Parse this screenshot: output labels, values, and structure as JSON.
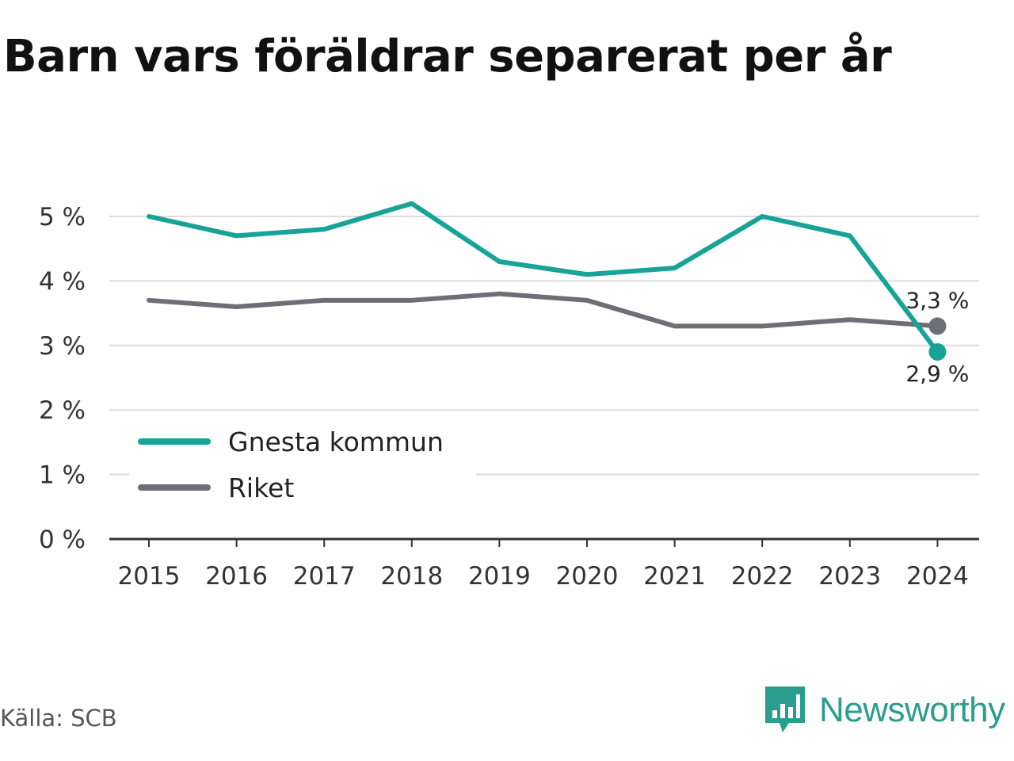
{
  "title": "Barn vars föräldrar separerat per år",
  "source": "Källa: SCB",
  "brand": {
    "name": "Newsworthy",
    "icon": "newsworthy-logo-icon",
    "color": "#2a9d8f"
  },
  "chart_data": {
    "type": "line",
    "title": "Barn vars föräldrar separerat per år",
    "xlabel": "",
    "ylabel": "",
    "categories": [
      "2015",
      "2016",
      "2017",
      "2018",
      "2019",
      "2020",
      "2021",
      "2022",
      "2023",
      "2024"
    ],
    "y_ticks": [
      "0 %",
      "1 %",
      "2 %",
      "3 %",
      "4 %",
      "5 %"
    ],
    "ylim": [
      0,
      5.5
    ],
    "grid": true,
    "legend_position": "bottom-left",
    "series": [
      {
        "name": "Gnesta kommun",
        "color": "#17a398",
        "values": [
          5.0,
          4.7,
          4.8,
          5.2,
          4.3,
          4.1,
          4.2,
          5.0,
          4.7,
          2.9
        ],
        "end_label": "2,9 %"
      },
      {
        "name": "Riket",
        "color": "#6e6e76",
        "values": [
          3.7,
          3.6,
          3.7,
          3.7,
          3.8,
          3.7,
          3.3,
          3.3,
          3.4,
          3.3
        ],
        "end_label": "3,3 %"
      }
    ]
  }
}
